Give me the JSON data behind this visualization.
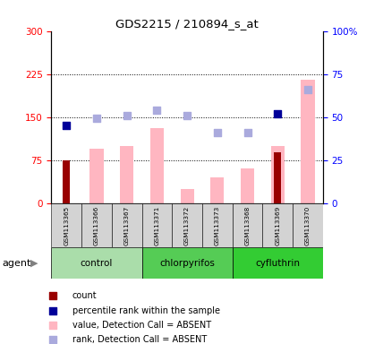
{
  "title": "GDS2215 / 210894_s_at",
  "samples": [
    "GSM113365",
    "GSM113366",
    "GSM113367",
    "GSM113371",
    "GSM113372",
    "GSM113373",
    "GSM113368",
    "GSM113369",
    "GSM113370"
  ],
  "count_values": [
    75,
    null,
    null,
    null,
    null,
    null,
    null,
    88,
    null
  ],
  "count_color": "#990000",
  "percentile_rank_values": [
    135,
    null,
    null,
    null,
    null,
    null,
    null,
    155,
    null
  ],
  "percentile_rank_color": "#000099",
  "value_absent_values": [
    null,
    95,
    100,
    130,
    25,
    45,
    60,
    100,
    215
  ],
  "value_absent_color": "#ffb6c1",
  "rank_absent_values": [
    null,
    148,
    152,
    162,
    152,
    122,
    122,
    null,
    198
  ],
  "rank_absent_color": "#aaaadd",
  "ylim_left": [
    0,
    300
  ],
  "ylim_right": [
    0,
    100
  ],
  "yticks_left": [
    0,
    75,
    150,
    225,
    300
  ],
  "yticks_right": [
    0,
    25,
    50,
    75,
    100
  ],
  "ytick_labels_left": [
    "0",
    "75",
    "150",
    "225",
    "300"
  ],
  "ytick_labels_right": [
    "0",
    "25",
    "50",
    "75",
    "100%"
  ],
  "hlines": [
    75,
    150,
    225
  ],
  "group_data": [
    {
      "name": "control",
      "start": 0,
      "end": 2,
      "color": "#aaddaa"
    },
    {
      "name": "chlorpyrifos",
      "start": 3,
      "end": 5,
      "color": "#55cc55"
    },
    {
      "name": "cyfluthrin",
      "start": 6,
      "end": 8,
      "color": "#33cc33"
    }
  ],
  "legend_items": [
    {
      "label": "count",
      "color": "#990000",
      "marker": "s"
    },
    {
      "label": "percentile rank within the sample",
      "color": "#000099",
      "marker": "s"
    },
    {
      "label": "value, Detection Call = ABSENT",
      "color": "#ffb6c1",
      "marker": "s"
    },
    {
      "label": "rank, Detection Call = ABSENT",
      "color": "#aaaadd",
      "marker": "s"
    }
  ],
  "agent_label": "agent"
}
